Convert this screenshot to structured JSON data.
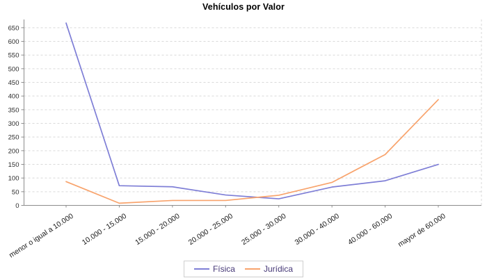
{
  "title": "Vehículos por Valor",
  "chart_data": {
    "type": "line",
    "title": "Vehículos por Valor",
    "categories": [
      "menor o igual a 10.000",
      "10.000 - 15.000",
      "15.000 - 20.000",
      "20.000 - 25.000",
      "25.000 - 30.000",
      "30.000 - 40.000",
      "40.000 - 60.000",
      "mayor de 60.000"
    ],
    "series": [
      {
        "name": "Física",
        "color": "#7e7ed6",
        "values": [
          667,
          72,
          68,
          38,
          24,
          67,
          90,
          150
        ]
      },
      {
        "name": "Jurídica",
        "color": "#f8a36c",
        "values": [
          87,
          8,
          18,
          18,
          37,
          84,
          186,
          387
        ]
      }
    ],
    "xlabel": "",
    "ylabel": "",
    "ylim": [
      0,
      670
    ],
    "yticks": [
      0,
      50,
      100,
      150,
      200,
      250,
      300,
      350,
      400,
      450,
      500,
      550,
      600,
      650
    ],
    "grid": "horizontal-dashed",
    "legend_position": "bottom-center"
  },
  "colors": {
    "axis": "#8c8c8c",
    "grid": "#d9d9d9",
    "tick_text": "#2b2b2b",
    "legend_text": "#453776",
    "legend_border": "#cfcfcf"
  }
}
